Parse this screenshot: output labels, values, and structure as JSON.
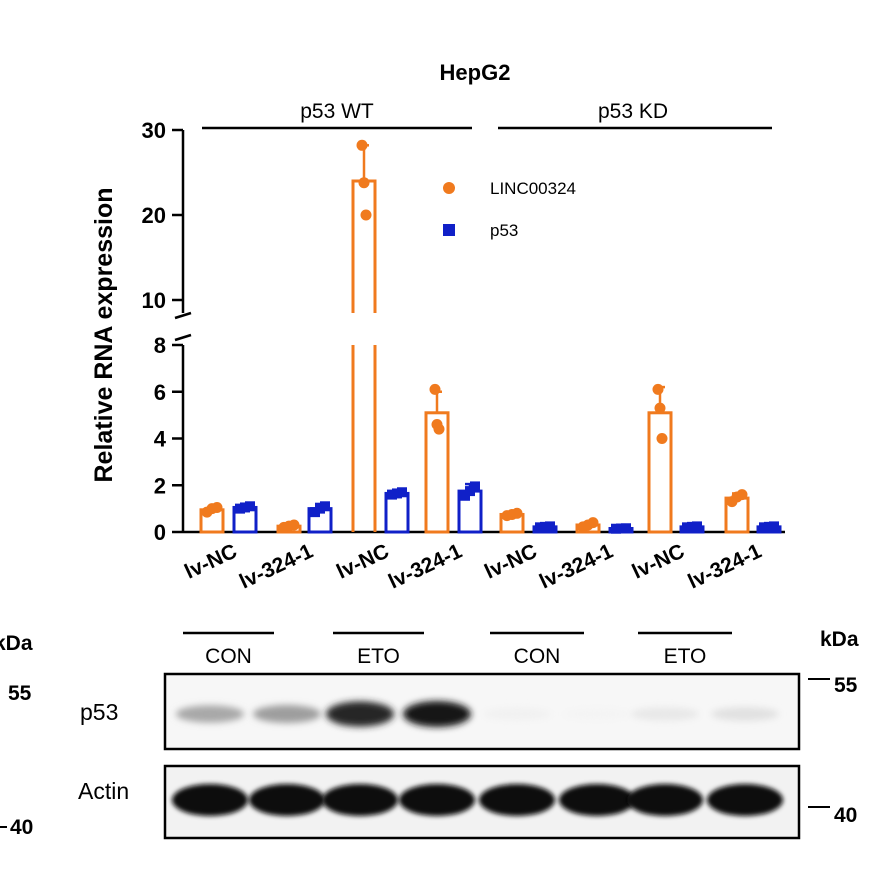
{
  "chart_data": {
    "type": "bar",
    "title": "HepG2",
    "ylabel": "Relative RNA expression",
    "ylim_lower": [
      0,
      8
    ],
    "ylim_upper": [
      10,
      30
    ],
    "yticks_lower": [
      "0",
      "2",
      "4",
      "6",
      "8"
    ],
    "yticks_upper": [
      "10",
      "20",
      "30"
    ],
    "categories": [
      "lv-NC",
      "lv-324-1",
      "lv-NC",
      "lv-324-1",
      "lv-NC",
      "lv-324-1",
      "lv-NC",
      "lv-324-1"
    ],
    "groups": [
      {
        "label": "p53 WT",
        "span": [
          0,
          3
        ]
      },
      {
        "label": "p53 KD",
        "span": [
          4,
          7
        ]
      }
    ],
    "treatments": [
      {
        "label": "CON",
        "span": [
          0,
          1
        ]
      },
      {
        "label": "ETO",
        "span": [
          2,
          3
        ]
      },
      {
        "label": "CON",
        "span": [
          4,
          5
        ]
      },
      {
        "label": "ETO",
        "span": [
          6,
          7
        ]
      }
    ],
    "series": [
      {
        "name": "LINC00324",
        "color": "#f07a1e",
        "marker": "circle",
        "values": [
          0.95,
          0.25,
          24.0,
          5.1,
          0.75,
          0.3,
          5.1,
          1.45
        ],
        "errors": [
          0.1,
          0.08,
          4.2,
          0.9,
          0.08,
          0.1,
          1.1,
          0.2
        ],
        "points": [
          [
            0.85,
            1.0,
            1.05
          ],
          [
            0.2,
            0.25,
            0.3
          ],
          [
            28.2,
            23.8,
            20.0
          ],
          [
            6.1,
            4.6,
            4.4
          ],
          [
            0.7,
            0.75,
            0.8
          ],
          [
            0.22,
            0.3,
            0.4
          ],
          [
            6.1,
            5.3,
            4.0
          ],
          [
            1.3,
            1.5,
            1.6
          ]
        ]
      },
      {
        "name": "p53",
        "color": "#1020c8",
        "marker": "square",
        "values": [
          1.05,
          1.0,
          1.65,
          1.75,
          0.22,
          0.15,
          0.22,
          0.22
        ],
        "errors": [
          0.05,
          0.2,
          0.08,
          0.3,
          0.02,
          0.02,
          0.03,
          0.03
        ],
        "points": [
          [
            1.0,
            1.05,
            1.1
          ],
          [
            0.85,
            1.0,
            1.1
          ],
          [
            1.6,
            1.65,
            1.7
          ],
          [
            1.55,
            1.75,
            1.95
          ],
          [
            0.2,
            0.22,
            0.24
          ],
          [
            0.14,
            0.15,
            0.16
          ],
          [
            0.2,
            0.22,
            0.24
          ],
          [
            0.2,
            0.22,
            0.24
          ]
        ]
      }
    ],
    "legend_position": "top-right",
    "grid": false
  },
  "blot": {
    "kda_label": "kDa",
    "markers": [
      "55",
      "40"
    ],
    "p53_label": "p53",
    "actin_label": "Actin",
    "p53_band_intensity": [
      0.38,
      0.42,
      0.95,
      1.0,
      0.06,
      0.05,
      0.1,
      0.13
    ],
    "actin_band_intensity": [
      1.0,
      1.0,
      1.0,
      1.0,
      1.0,
      1.0,
      1.0,
      1.0
    ]
  }
}
